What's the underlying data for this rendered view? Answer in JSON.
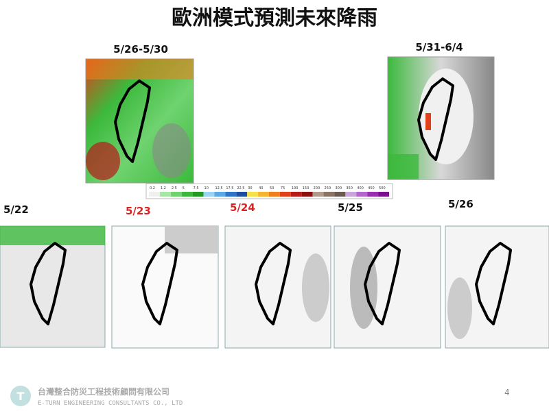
{
  "header": {
    "title": "歐洲模式預測未來降雨"
  },
  "big_maps": [
    {
      "label": "5/26-5/30"
    },
    {
      "label": "5/31-6/4"
    }
  ],
  "colorbar": {
    "ticks": [
      0.2,
      1.2,
      2.5,
      5,
      7.5,
      10,
      12.5,
      17.5,
      22.5,
      30,
      40,
      50,
      75,
      100,
      150,
      200,
      250,
      300,
      350,
      400,
      450,
      500
    ],
    "colors": [
      "#f0f0f0",
      "#a8e6a8",
      "#6fd36f",
      "#3cb93c",
      "#229a22",
      "#9cd3f5",
      "#5aa9e6",
      "#2e74c9",
      "#1d4ea3",
      "#f5e14a",
      "#f5b531",
      "#ef7f1e",
      "#e0401a",
      "#b81a1a",
      "#8c1010",
      "#b09a8a",
      "#8a7468",
      "#6a5a52",
      "#c9a6d9",
      "#b566cc",
      "#9a2db0",
      "#7a0f8f"
    ]
  },
  "small_maps": [
    {
      "label": "5/22"
    },
    {
      "label": "5/23"
    },
    {
      "label": "5/24"
    },
    {
      "label": "5/25"
    },
    {
      "label": "5/26"
    }
  ],
  "footer": {
    "company": "台灣整合防災工程技術顧問有限公司",
    "company_en": "E-TURN ENGINEERING CONSULTANTS CO., LTD",
    "page": "4"
  }
}
